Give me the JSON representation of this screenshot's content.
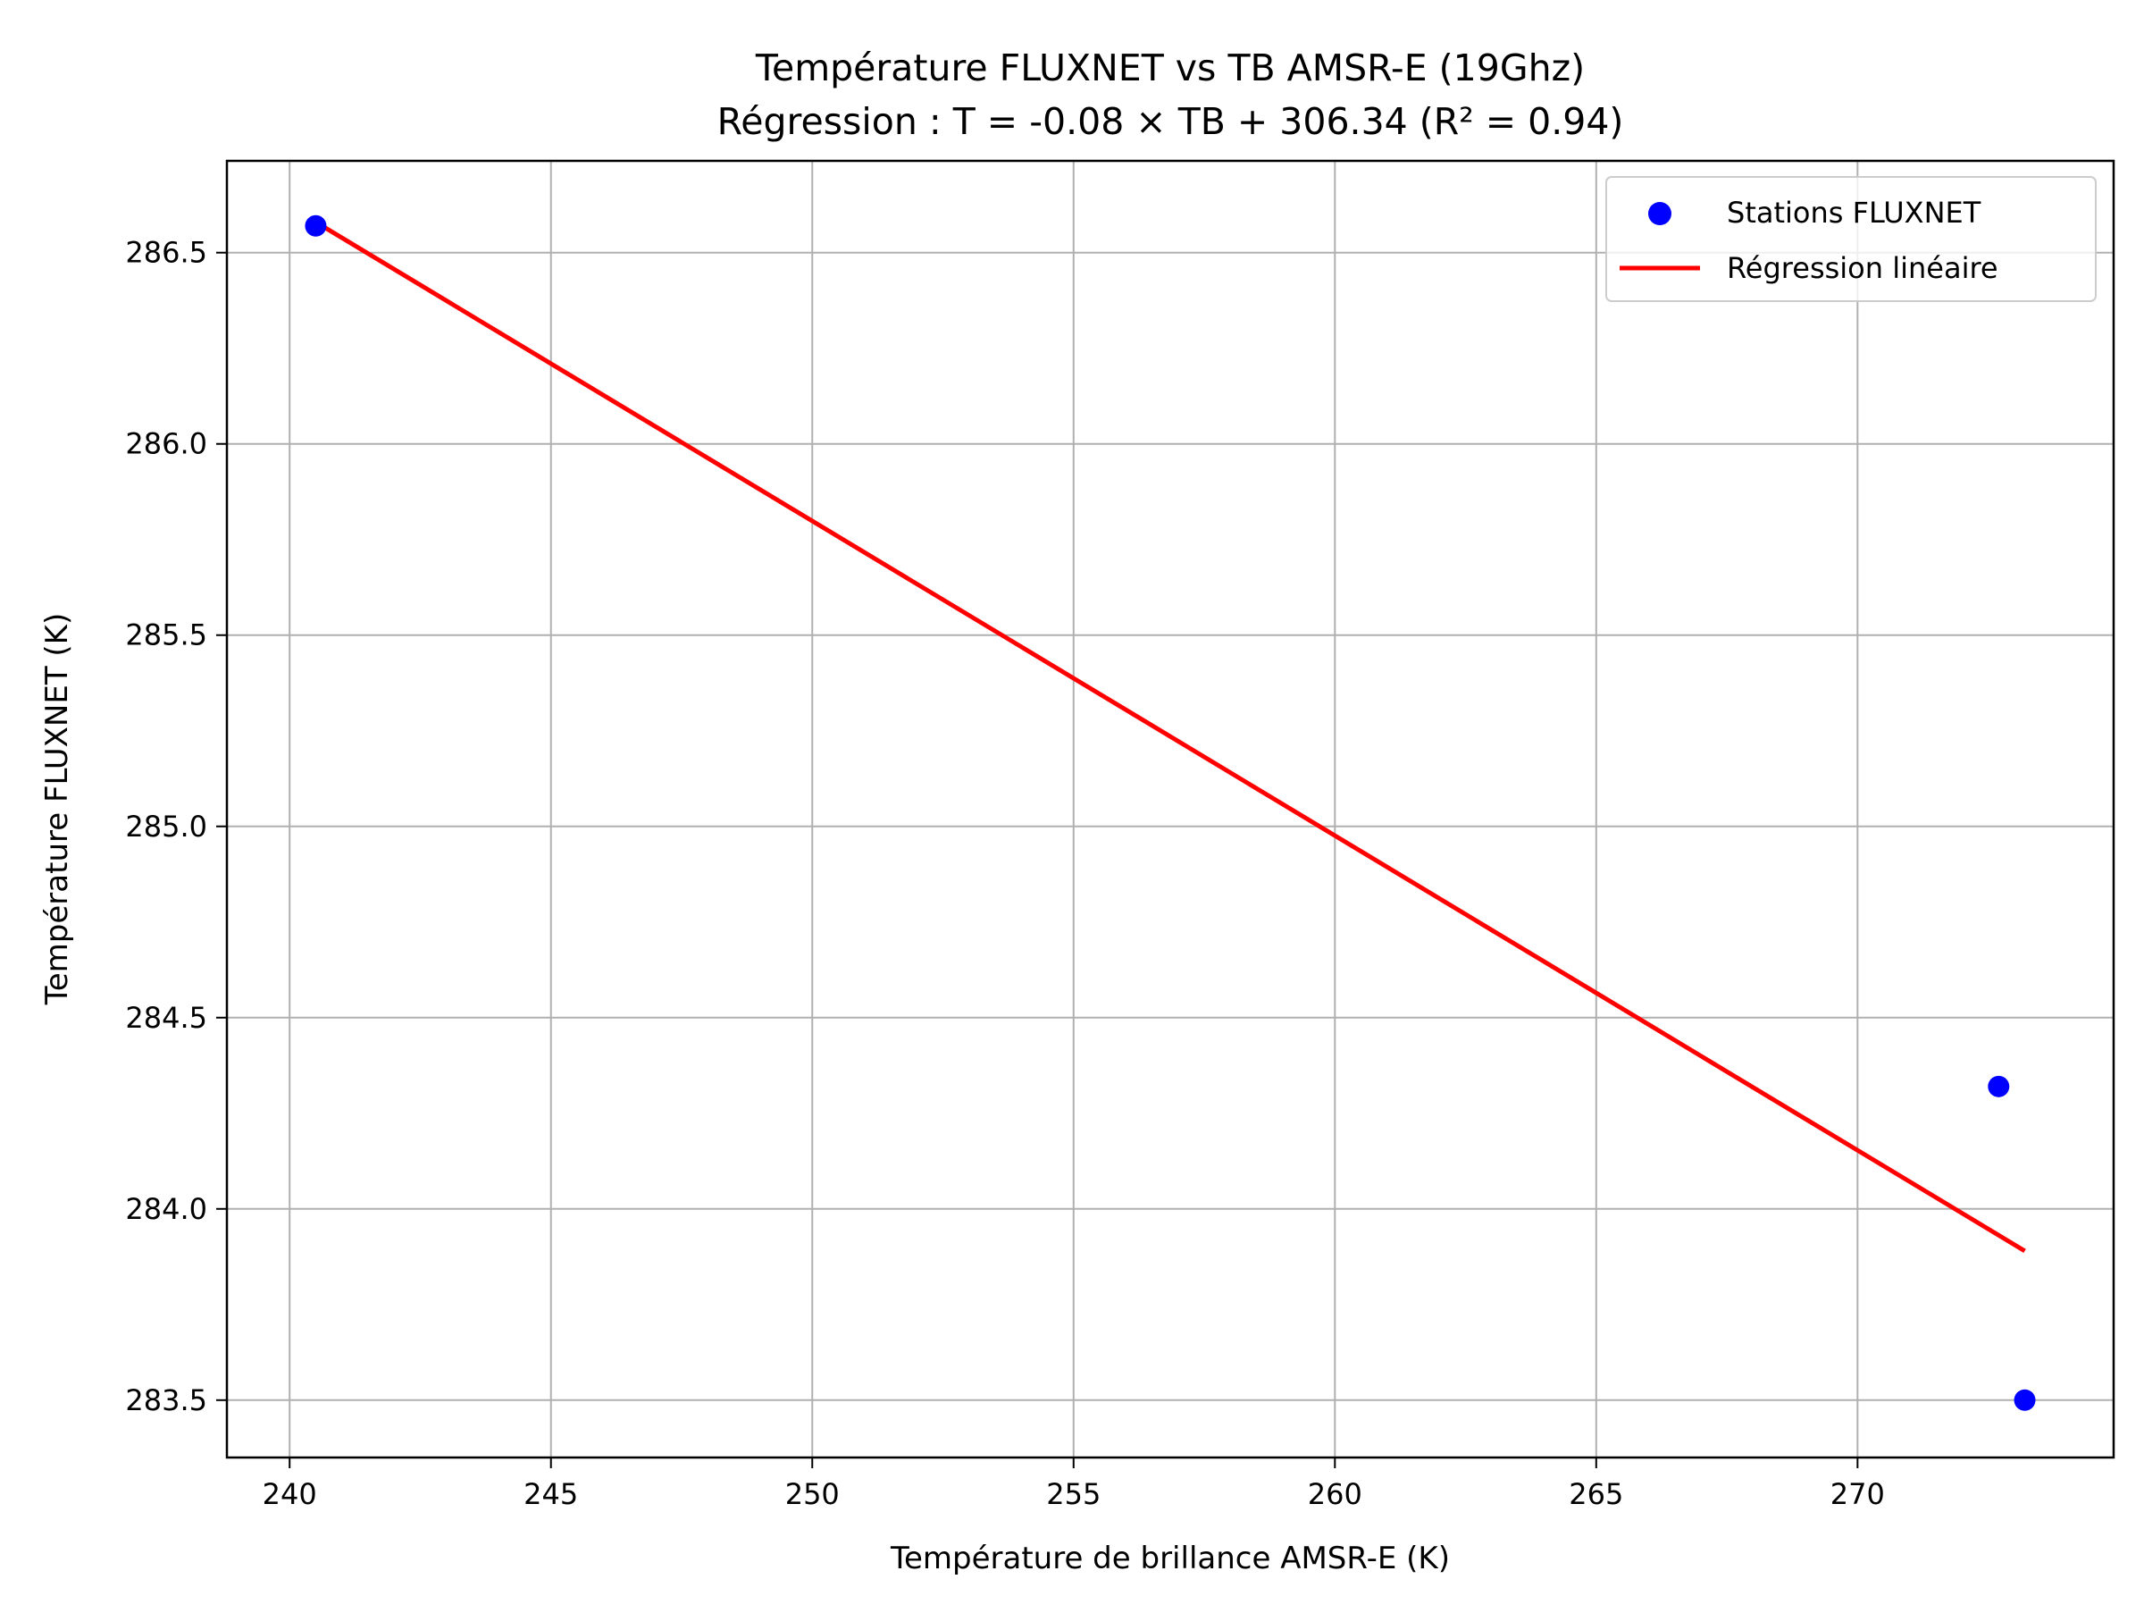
{
  "chart_data": {
    "type": "scatter",
    "title": "Température FLUXNET vs TB AMSR-E (19Ghz)",
    "subtitle": "Régression : T = -0.08 × TB + 306.34 (R² = 0.94)",
    "xlabel": "Température de brillance AMSR-E (K)",
    "ylabel": "Température FLUXNET (K)",
    "xlim": [
      238.8,
      274.9
    ],
    "ylim": [
      283.35,
      286.74
    ],
    "xticks": [
      240,
      245,
      250,
      255,
      260,
      265,
      270
    ],
    "yticks": [
      283.5,
      284.0,
      284.5,
      285.0,
      285.5,
      286.0,
      286.5
    ],
    "xtick_labels": [
      "240",
      "245",
      "250",
      "255",
      "260",
      "265",
      "270"
    ],
    "ytick_labels": [
      "283.5",
      "284.0",
      "284.5",
      "285.0",
      "285.5",
      "286.0",
      "286.5"
    ],
    "grid": true,
    "legend_position": "top-right",
    "series": [
      {
        "name": "Stations FLUXNET",
        "kind": "scatter",
        "color": "#0000ff",
        "points": [
          {
            "x": 240.5,
            "y": 286.57
          },
          {
            "x": 272.7,
            "y": 284.32
          },
          {
            "x": 273.2,
            "y": 283.5
          }
        ]
      },
      {
        "name": "Régression linéaire",
        "kind": "line",
        "color": "#ff0000",
        "points": [
          {
            "x": 240.5,
            "y": 286.58
          },
          {
            "x": 273.2,
            "y": 283.89
          }
        ]
      }
    ]
  }
}
